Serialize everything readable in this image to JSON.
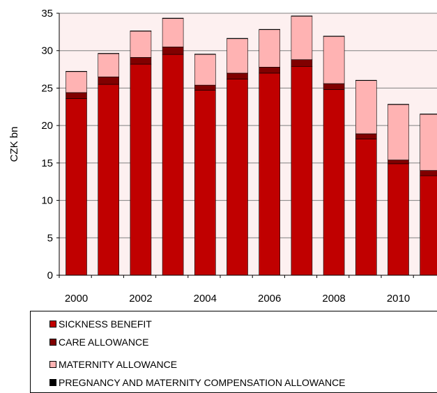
{
  "chart_data": {
    "type": "bar",
    "stacked": true,
    "ylabel": "CZK bn",
    "xlabel": "",
    "ylim": [
      0,
      35
    ],
    "yticks": [
      0,
      5,
      10,
      15,
      20,
      25,
      30,
      35
    ],
    "categories": [
      "2000",
      "2001",
      "2002",
      "2003",
      "2004",
      "2005",
      "2006",
      "2007",
      "2008",
      "2009",
      "2010",
      "2011"
    ],
    "xtick_labels": [
      "2000",
      "",
      "2002",
      "",
      "2004",
      "",
      "2006",
      "",
      "2008",
      "",
      "2010",
      ""
    ],
    "grid": "horizontal",
    "plot_background": "#fdf0f0",
    "series": [
      {
        "name": "SICKNESS BENEFIT",
        "color": "#c00000",
        "values": [
          23.6,
          25.5,
          28.2,
          29.5,
          24.7,
          26.2,
          27.0,
          27.9,
          24.8,
          18.2,
          14.9,
          13.3
        ]
      },
      {
        "name": "CARE ALLOWANCE",
        "color": "#800000",
        "values": [
          0.8,
          1.0,
          0.9,
          1.0,
          0.7,
          0.8,
          0.8,
          0.9,
          0.8,
          0.7,
          0.5,
          0.7
        ]
      },
      {
        "name": "MATERNITY ALLOWANCE",
        "color": "#ffb3b3",
        "values": [
          2.8,
          3.1,
          3.5,
          3.8,
          4.1,
          4.6,
          5.0,
          5.8,
          6.3,
          7.1,
          7.4,
          7.5
        ]
      },
      {
        "name": "PREGNANCY AND MATERNITY COMPENSATION ALLOWANCE",
        "color": "#000000",
        "values": [
          0.05,
          0.05,
          0.05,
          0.05,
          0.05,
          0.05,
          0.05,
          0.05,
          0.05,
          0.05,
          0.05,
          0.05
        ]
      }
    ],
    "legend_position": "bottom"
  }
}
